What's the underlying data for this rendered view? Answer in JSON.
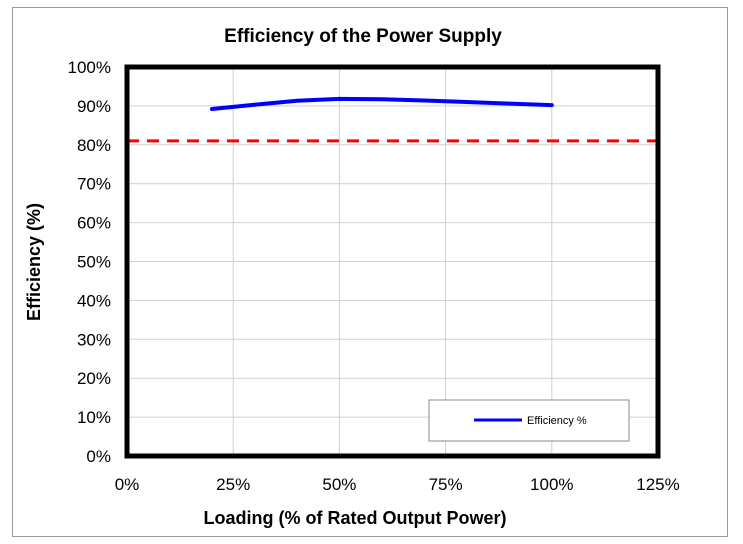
{
  "chart_data": {
    "type": "line",
    "title": "Efficiency of the Power Supply",
    "xlabel": "Loading (% of Rated Output Power)",
    "ylabel": "Efficiency (%)",
    "xlim": [
      0,
      125
    ],
    "ylim": [
      0,
      100
    ],
    "x_ticks": [
      0,
      25,
      50,
      75,
      100,
      125
    ],
    "x_tick_labels": [
      "0%",
      "25%",
      "50%",
      "75%",
      "100%",
      "125%"
    ],
    "y_ticks": [
      0,
      10,
      20,
      30,
      40,
      50,
      60,
      70,
      80,
      90,
      100
    ],
    "y_tick_labels": [
      "0%",
      "10%",
      "20%",
      "30%",
      "40%",
      "50%",
      "60%",
      "70%",
      "80%",
      "90%",
      "100%"
    ],
    "grid": true,
    "legend_position": "bottom-right",
    "series": [
      {
        "name": "Efficiency %",
        "color": "#0000ff",
        "x": [
          20,
          30,
          40,
          50,
          60,
          70,
          80,
          90,
          100
        ],
        "y": [
          89.2,
          90.3,
          91.3,
          91.8,
          91.7,
          91.4,
          91.0,
          90.6,
          90.2
        ]
      }
    ],
    "reference_lines": [
      {
        "y": 81,
        "color": "#ff0000",
        "style": "dashed"
      }
    ]
  }
}
